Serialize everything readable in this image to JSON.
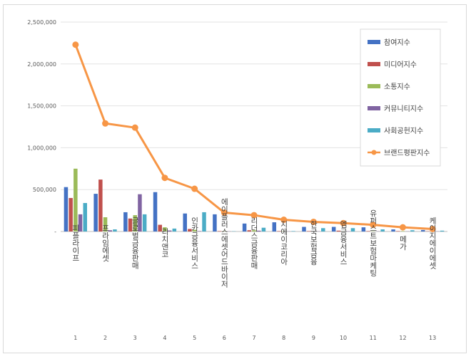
{
  "chart_data": {
    "type": "bar",
    "categories": [
      "피플라이프",
      "프라임에셋",
      "글로벌금융판매",
      "리치앤코",
      "인카금융서비스",
      "에이플러스에셋어드바이저",
      "리더스금융판매",
      "지에이코리아",
      "한국보험금융",
      "엠금융서비스",
      "유퍼스트보험마케팅",
      "메가",
      "케이지에이에셋"
    ],
    "indices": [
      "1",
      "2",
      "3",
      "4",
      "5",
      "6",
      "7",
      "8",
      "9",
      "10",
      "11",
      "12",
      "13"
    ],
    "ylim": [
      0,
      2500000
    ],
    "yticks": [
      0,
      500000,
      1000000,
      1500000,
      2000000,
      2500000
    ],
    "ytick_labels": [
      "-",
      "500,000",
      "1,000,000",
      "1,500,000",
      "2,000,000",
      "2,500,000"
    ],
    "series": [
      {
        "name": "참여지수",
        "color": "#4472C4",
        "values": [
          530000,
          450000,
          230000,
          470000,
          215000,
          205000,
          95000,
          110000,
          55000,
          55000,
          50000,
          25000,
          18000
        ]
      },
      {
        "name": "미디어지수",
        "color": "#C0504D",
        "values": [
          400000,
          620000,
          155000,
          80000,
          30000,
          5000,
          15000,
          5000,
          5000,
          10000,
          5000,
          5000,
          3000
        ]
      },
      {
        "name": "소통지수",
        "color": "#9BBB59",
        "values": [
          750000,
          170000,
          195000,
          50000,
          20000,
          3000,
          15000,
          3000,
          3000,
          5000,
          3000,
          5000,
          2000
        ]
      },
      {
        "name": "커뮤니티지수",
        "color": "#8064A2",
        "values": [
          205000,
          15000,
          445000,
          12000,
          5000,
          2000,
          10000,
          2000,
          2000,
          3000,
          2000,
          2000,
          2000
        ]
      },
      {
        "name": "사회공헌지수",
        "color": "#4BACC6",
        "values": [
          340000,
          25000,
          205000,
          35000,
          230000,
          3000,
          45000,
          5000,
          40000,
          40000,
          25000,
          15000,
          10000
        ]
      }
    ],
    "line_series": {
      "name": "브랜드평판지수",
      "color": "#F79646",
      "values": [
        2230000,
        1290000,
        1240000,
        640000,
        510000,
        225000,
        195000,
        140000,
        115000,
        100000,
        80000,
        50000,
        30000
      ]
    }
  }
}
